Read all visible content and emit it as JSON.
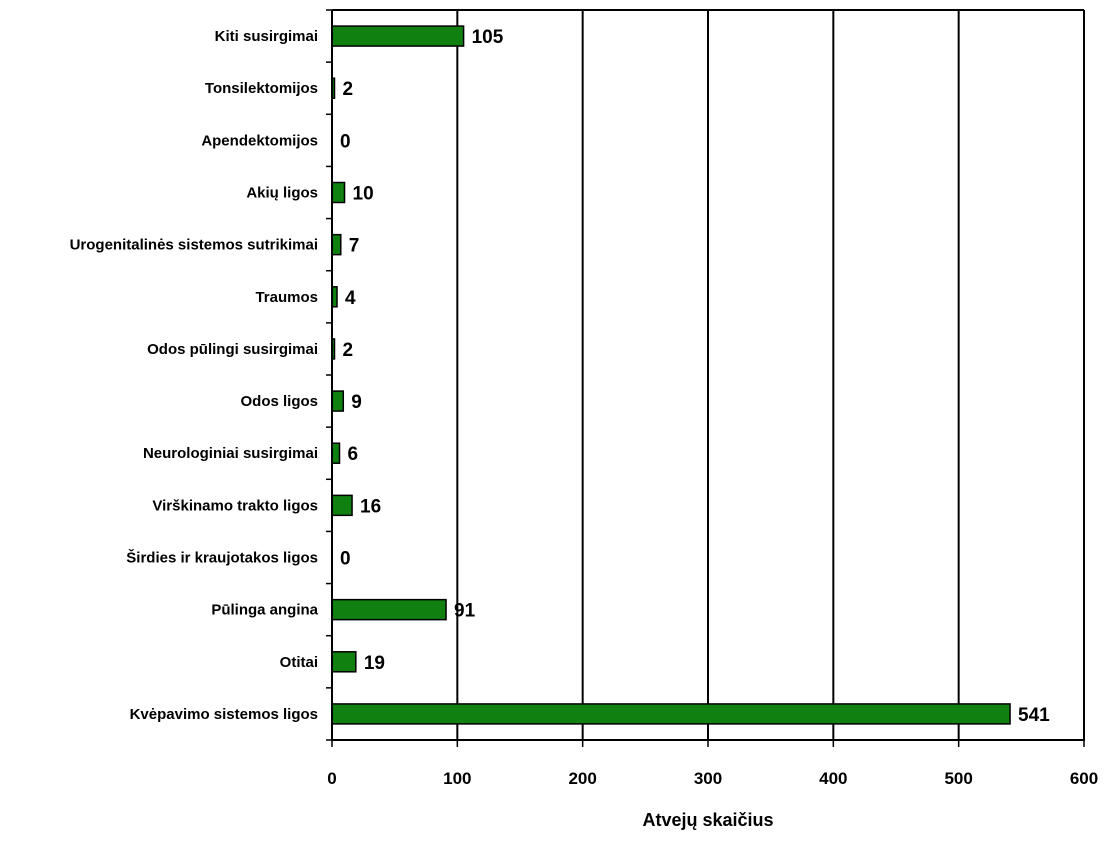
{
  "chart_data": {
    "type": "bar",
    "orientation": "horizontal",
    "categories": [
      "Kvėpavimo sistemos ligos",
      "Otitai",
      "Pūlinga angina",
      "Širdies ir kraujotakos ligos",
      "Virškinamo trakto ligos",
      "Neurologiniai susirgimai",
      "Odos ligos",
      "Odos pūlingi susirgimai",
      "Traumos",
      "Urogenitalinės sistemos sutrikimai",
      "Akių ligos",
      "Apendektomijos",
      "Tonsilektomijos",
      "Kiti susirgimai"
    ],
    "values": [
      541,
      19,
      91,
      0,
      16,
      6,
      9,
      2,
      4,
      7,
      10,
      0,
      2,
      105
    ],
    "value_labels": [
      "541",
      "19",
      "91",
      "0",
      "16",
      "6",
      "9",
      "2",
      "4",
      "7",
      "10",
      "0",
      "2",
      "105"
    ],
    "xlabel": "Atvejų skaičius",
    "xlim": [
      0,
      600
    ],
    "x_ticks": [
      0,
      100,
      200,
      300,
      400,
      500,
      600
    ],
    "x_tick_labels": [
      "0",
      "100",
      "200",
      "300",
      "400",
      "500",
      "600"
    ],
    "bar_color": "#108010",
    "bar_edge_color": "#000000",
    "grid": "vertical",
    "legend": "none"
  }
}
